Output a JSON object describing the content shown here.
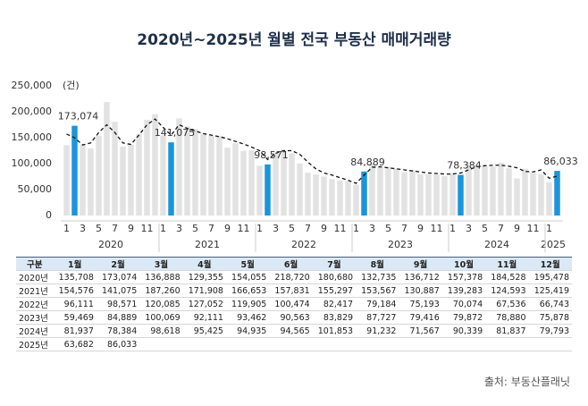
{
  "chart_data": {
    "type": "bar",
    "title": "2020년~2025년 월별 전국 부동산 매매거래량",
    "y_unit": "(건)",
    "categories": [
      "1",
      null,
      "3",
      null,
      "5",
      null,
      "7",
      null,
      "9",
      null,
      "11",
      null,
      "1",
      null,
      "3",
      null,
      "5",
      null,
      "7",
      null,
      "9",
      null,
      "11",
      null,
      "1",
      null,
      "3",
      null,
      "5",
      null,
      "7",
      null,
      "9",
      null,
      "11",
      null,
      "1",
      null,
      "3",
      null,
      "5",
      null,
      "7",
      null,
      "9",
      null,
      "11",
      null,
      "1",
      null,
      "3",
      null,
      "5",
      null,
      "7",
      null,
      "9",
      null,
      "11",
      null,
      "1",
      null
    ],
    "years": [
      "2020",
      "2021",
      "2022",
      "2023",
      "2024",
      "2025"
    ],
    "values": [
      135708,
      173074,
      136888,
      129355,
      154055,
      218720,
      180680,
      132735,
      136712,
      157378,
      184528,
      195478,
      154576,
      141075,
      187260,
      171908,
      166653,
      157831,
      155297,
      153567,
      130887,
      139283,
      124593,
      125419,
      96111,
      98571,
      120085,
      127052,
      119905,
      100474,
      82417,
      79184,
      75193,
      70074,
      67536,
      66743,
      59469,
      84889,
      100069,
      92111,
      93462,
      90563,
      83829,
      87727,
      79416,
      79872,
      78880,
      75878,
      81937,
      78384,
      98618,
      95425,
      94935,
      94565,
      101853,
      91232,
      71567,
      90339,
      81837,
      79793,
      63682,
      86033
    ],
    "value_labels": [
      null,
      "173,074",
      null,
      null,
      null,
      null,
      null,
      null,
      null,
      null,
      null,
      null,
      null,
      "141,075",
      null,
      null,
      null,
      null,
      null,
      null,
      null,
      null,
      null,
      null,
      null,
      "98,571",
      null,
      null,
      null,
      null,
      null,
      null,
      null,
      null,
      null,
      null,
      null,
      "84,889",
      null,
      null,
      null,
      null,
      null,
      null,
      null,
      null,
      null,
      null,
      null,
      "78,384",
      null,
      null,
      null,
      null,
      null,
      null,
      null,
      null,
      null,
      null,
      null,
      "86,033"
    ],
    "color": "#e2e2e2",
    "labeled_bar_color": "#1a95da",
    "trend": {
      "color": "#111111",
      "dashed": true,
      "values": [
        157000,
        150000,
        136000,
        140000,
        160000,
        175000,
        160000,
        140000,
        137000,
        155000,
        175000,
        186000,
        170000,
        155000,
        175000,
        168000,
        163000,
        158000,
        155000,
        152000,
        148000,
        143000,
        138000,
        132000,
        125000,
        108000,
        120000,
        125000,
        125000,
        118000,
        103000,
        90000,
        82000,
        78000,
        73000,
        68000,
        62000,
        78000,
        93000,
        94000,
        92000,
        90000,
        88000,
        86000,
        84000,
        82000,
        81000,
        80000,
        80000,
        82000,
        88000,
        94000,
        96000,
        97000,
        97000,
        95000,
        92000,
        85000,
        84000,
        88000,
        72000,
        76000
      ]
    },
    "ylim": [
      0,
      250000
    ],
    "yticks": [
      0,
      {
        "value": 50000,
        "label": "50,000"
      },
      {
        "value": 100000,
        "label": "100,000"
      },
      {
        "value": 150000,
        "label": "150,000"
      },
      {
        "value": 200000,
        "label": "200,000"
      },
      {
        "value": 250000,
        "label": "250,000"
      }
    ],
    "grid": false
  },
  "table": {
    "header": [
      "구분",
      "1월",
      "2월",
      "3월",
      "4월",
      "5월",
      "6월",
      "7월",
      "8월",
      "9월",
      "10월",
      "11월",
      "12월"
    ],
    "rows": [
      [
        "2020년",
        "135,708",
        "173,074",
        "136,888",
        "129,355",
        "154,055",
        "218,720",
        "180,680",
        "132,735",
        "136,712",
        "157,378",
        "184,528",
        "195,478"
      ],
      [
        "2021년",
        "154,576",
        "141,075",
        "187,260",
        "171,908",
        "166,653",
        "157,831",
        "155,297",
        "153,567",
        "130,887",
        "139,283",
        "124,593",
        "125,419"
      ],
      [
        "2022년",
        "96,111",
        "98,571",
        "120,085",
        "127,052",
        "119,905",
        "100,474",
        "82,417",
        "79,184",
        "75,193",
        "70,074",
        "67,536",
        "66,743"
      ],
      [
        "2023년",
        "59,469",
        "84,889",
        "100,069",
        "92,111",
        "93,462",
        "90,563",
        "83,829",
        "87,727",
        "79,416",
        "79,872",
        "78,880",
        "75,878"
      ],
      [
        "2024년",
        "81,937",
        "78,384",
        "98,618",
        "95,425",
        "94,935",
        "94,565",
        "101,853",
        "91,232",
        "71,567",
        "90,339",
        "81,837",
        "79,793"
      ],
      [
        "2025년",
        "63,682",
        "86,033"
      ]
    ]
  },
  "source": "출처: 부동산플래닛"
}
